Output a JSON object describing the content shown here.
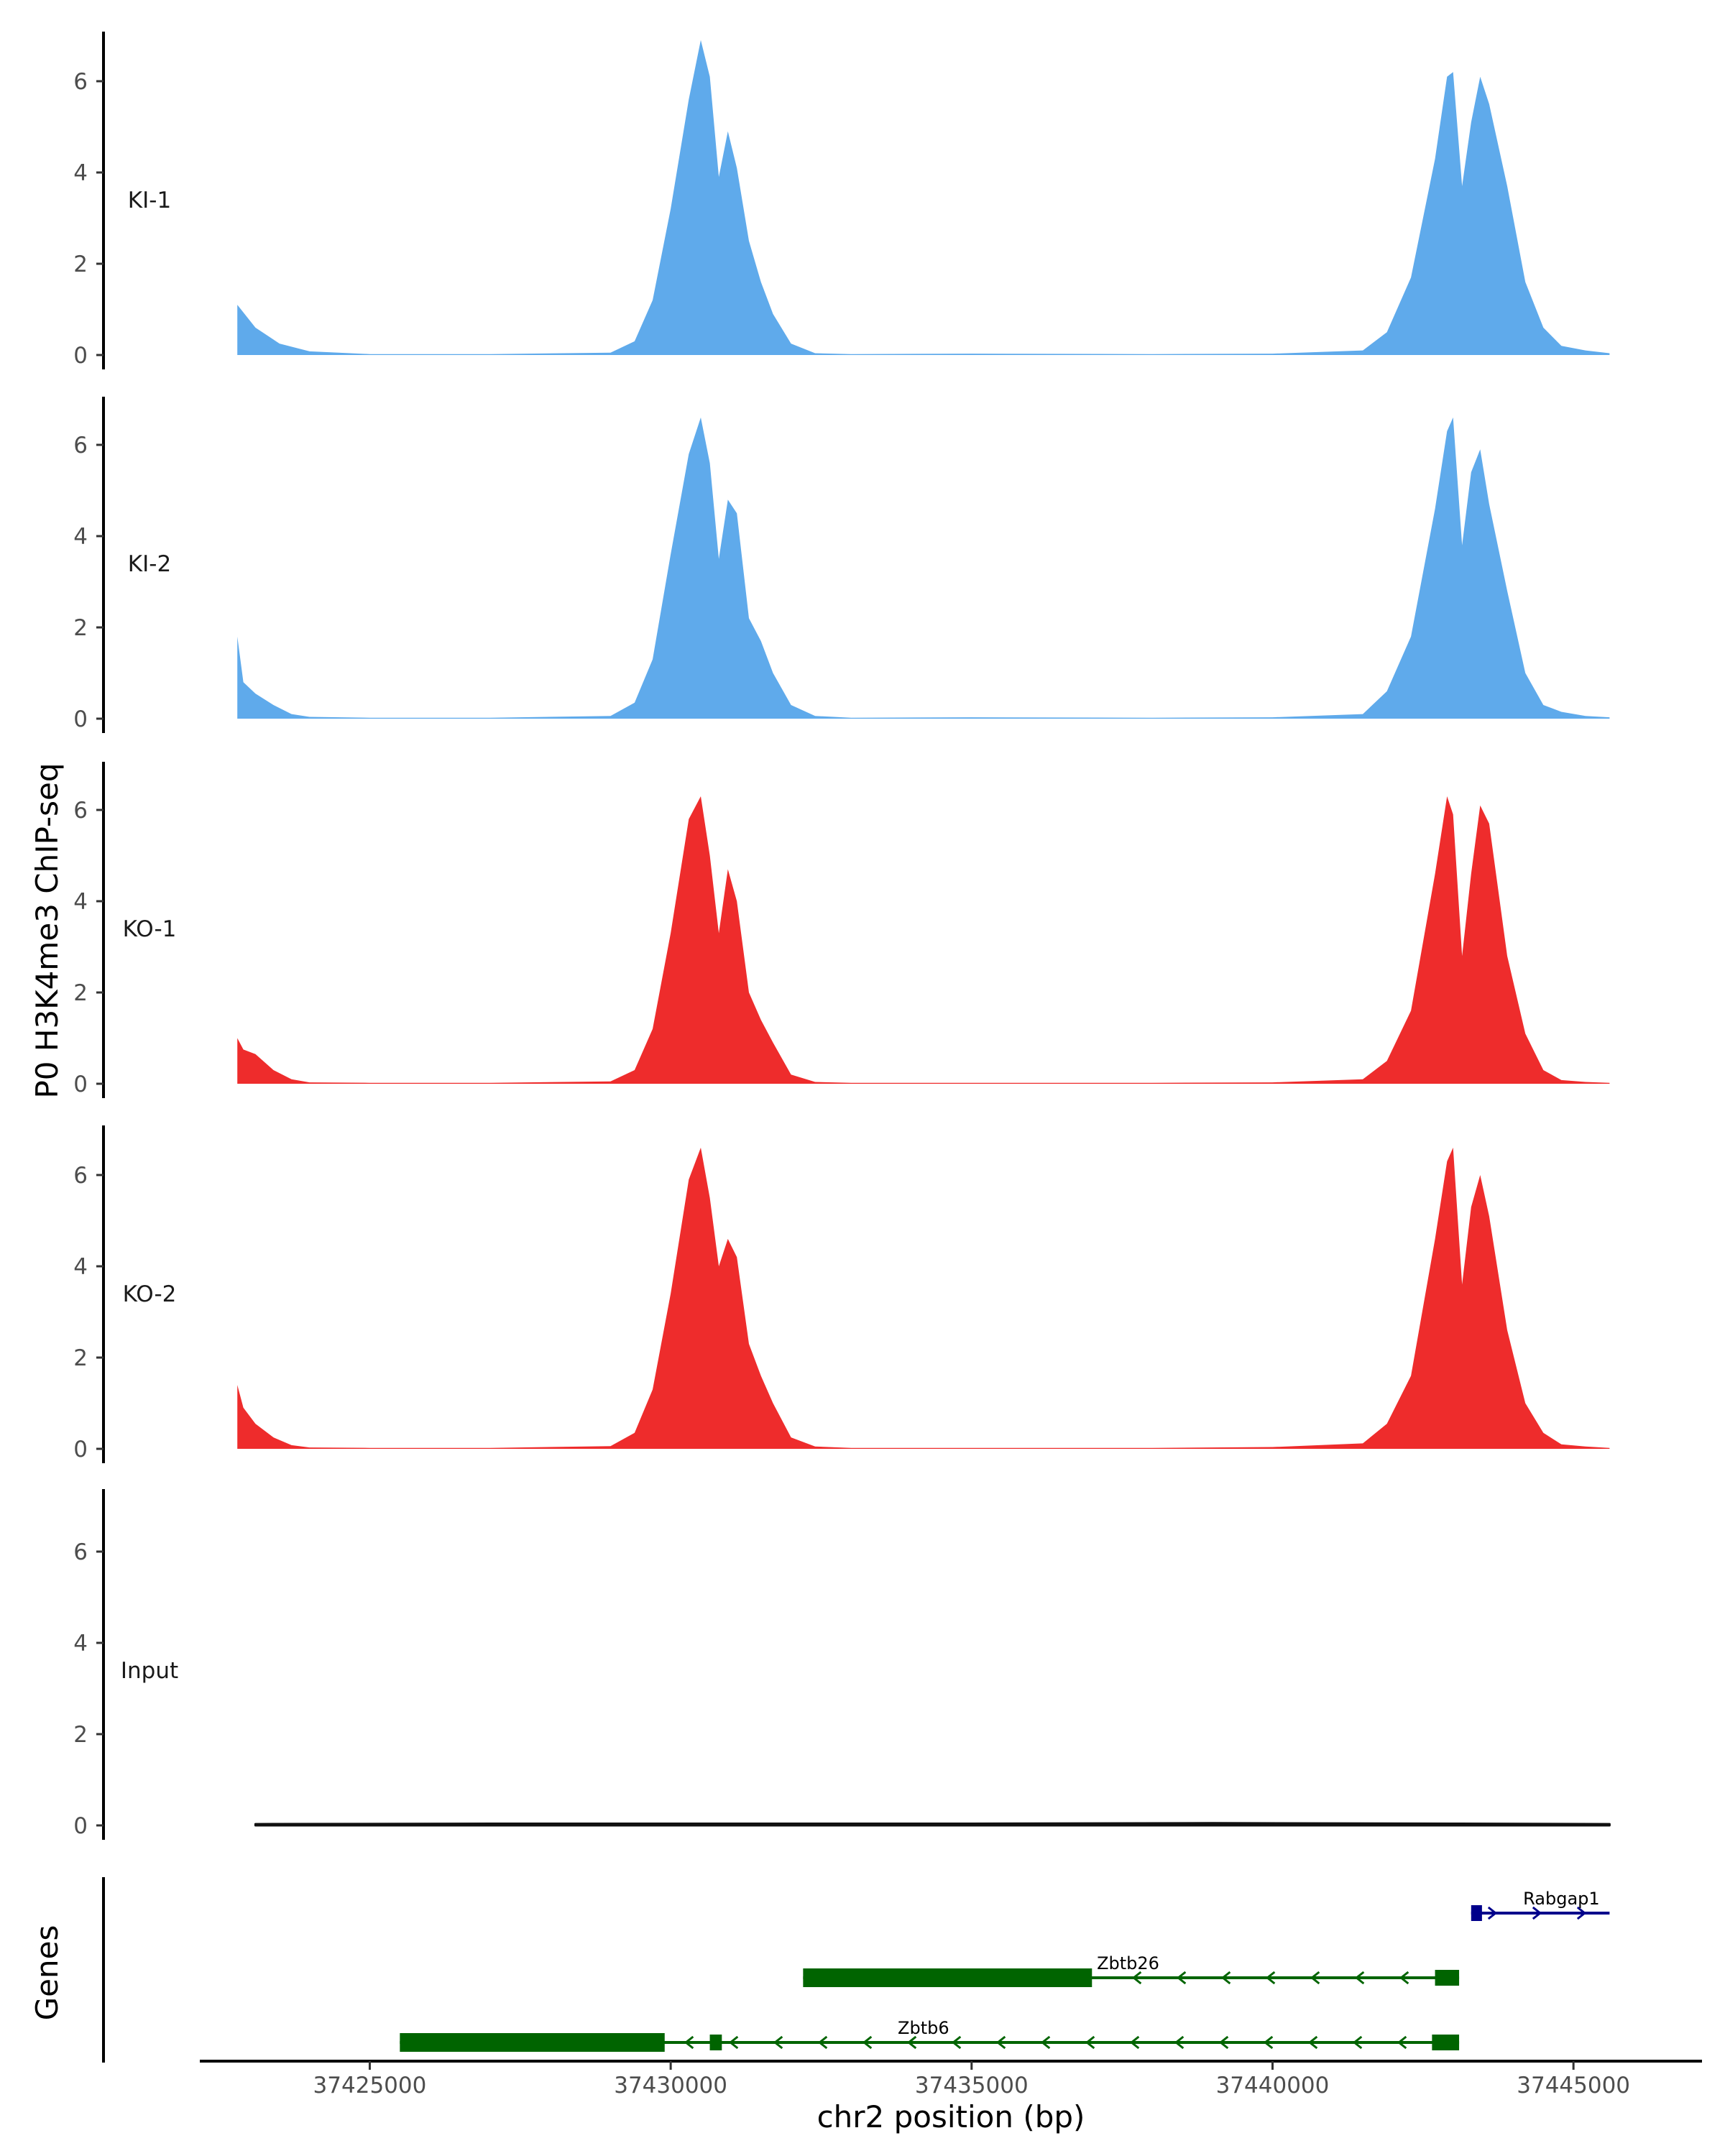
{
  "chart_data": {
    "type": "area",
    "ylabel": "P0 H3K4me3 ChIP-seq",
    "xlabel": "chr2 position (bp)",
    "gene_panel_label": "Genes",
    "ylim": [
      0,
      7.2
    ],
    "yticks": [
      0,
      2,
      4,
      6
    ],
    "xlim": [
      37422200,
      37447100
    ],
    "xticks": [
      37425000,
      37430000,
      37435000,
      37440000,
      37445000
    ],
    "x_tick_labels": [
      "37425000",
      "37430000",
      "37435000",
      "37440000",
      "37445000"
    ],
    "tracks": [
      {
        "name": "KI-1",
        "color": "#5FAAEB",
        "x": [
          37422800,
          37423100,
          37423500,
          37424000,
          37425000,
          37427000,
          37429000,
          37429400,
          37429700,
          37430000,
          37430300,
          37430500,
          37430650,
          37430800,
          37430950,
          37431100,
          37431300,
          37431500,
          37431700,
          37432000,
          37432400,
          37433000,
          37435000,
          37438000,
          37440000,
          37441500,
          37441900,
          37442300,
          37442700,
          37442900,
          37443000,
          37443150,
          37443300,
          37443450,
          37443600,
          37443900,
          37444200,
          37444500,
          37444800,
          37445200,
          37445600
        ],
        "values": [
          1.1,
          0.6,
          0.25,
          0.08,
          0.02,
          0.02,
          0.05,
          0.3,
          1.2,
          3.2,
          5.6,
          6.9,
          6.1,
          3.9,
          4.9,
          4.1,
          2.5,
          1.6,
          0.9,
          0.25,
          0.04,
          0.02,
          0.03,
          0.02,
          0.03,
          0.1,
          0.5,
          1.7,
          4.3,
          6.1,
          6.2,
          3.7,
          5.1,
          6.1,
          5.5,
          3.7,
          1.6,
          0.6,
          0.2,
          0.1,
          0.04
        ],
        "label_y": 3.4
      },
      {
        "name": "KI-2",
        "color": "#5FAAEB",
        "x": [
          37422800,
          37422900,
          37423100,
          37423400,
          37423700,
          37424000,
          37425000,
          37427000,
          37429000,
          37429400,
          37429700,
          37430000,
          37430300,
          37430500,
          37430650,
          37430800,
          37430950,
          37431100,
          37431300,
          37431500,
          37431700,
          37432000,
          37432400,
          37433000,
          37435000,
          37438000,
          37440000,
          37441500,
          37441900,
          37442300,
          37442700,
          37442900,
          37443000,
          37443150,
          37443300,
          37443450,
          37443600,
          37443900,
          37444200,
          37444500,
          37444800,
          37445200,
          37445600
        ],
        "values": [
          1.8,
          0.8,
          0.55,
          0.3,
          0.1,
          0.04,
          0.02,
          0.02,
          0.06,
          0.35,
          1.3,
          3.6,
          5.8,
          6.6,
          5.6,
          3.5,
          4.8,
          4.5,
          2.2,
          1.7,
          1.0,
          0.3,
          0.06,
          0.02,
          0.03,
          0.02,
          0.03,
          0.1,
          0.6,
          1.8,
          4.6,
          6.3,
          6.6,
          3.8,
          5.4,
          5.9,
          4.7,
          2.8,
          1.0,
          0.3,
          0.15,
          0.06,
          0.03
        ],
        "label_y": 3.4
      },
      {
        "name": "KO-1",
        "color": "#EE2C2C",
        "x": [
          37422800,
          37422900,
          37423100,
          37423400,
          37423700,
          37424000,
          37425000,
          37427000,
          37429000,
          37429400,
          37429700,
          37430000,
          37430300,
          37430500,
          37430650,
          37430800,
          37430950,
          37431100,
          37431300,
          37431500,
          37431700,
          37432000,
          37432400,
          37433000,
          37435000,
          37438000,
          37440000,
          37441500,
          37441900,
          37442300,
          37442700,
          37442900,
          37443000,
          37443150,
          37443300,
          37443450,
          37443600,
          37443900,
          37444200,
          37444500,
          37444800,
          37445200,
          37445600
        ],
        "values": [
          1.0,
          0.75,
          0.65,
          0.3,
          0.1,
          0.03,
          0.02,
          0.02,
          0.05,
          0.3,
          1.2,
          3.3,
          5.8,
          6.3,
          5.0,
          3.3,
          4.7,
          4.0,
          2.0,
          1.4,
          0.9,
          0.2,
          0.04,
          0.02,
          0.02,
          0.02,
          0.03,
          0.1,
          0.5,
          1.6,
          4.6,
          6.3,
          5.9,
          2.8,
          4.6,
          6.1,
          5.7,
          2.8,
          1.1,
          0.3,
          0.08,
          0.04,
          0.02
        ],
        "label_y": 3.4
      },
      {
        "name": "KO-2",
        "color": "#EE2C2C",
        "x": [
          37422800,
          37422900,
          37423100,
          37423400,
          37423700,
          37424000,
          37425000,
          37427000,
          37429000,
          37429400,
          37429700,
          37430000,
          37430300,
          37430500,
          37430650,
          37430800,
          37430950,
          37431100,
          37431300,
          37431500,
          37431700,
          37432000,
          37432400,
          37433000,
          37435000,
          37438000,
          37440000,
          37441500,
          37441900,
          37442300,
          37442700,
          37442900,
          37443000,
          37443150,
          37443300,
          37443450,
          37443600,
          37443900,
          37444200,
          37444500,
          37444800,
          37445200,
          37445600
        ],
        "values": [
          1.4,
          0.9,
          0.55,
          0.25,
          0.08,
          0.03,
          0.02,
          0.02,
          0.06,
          0.35,
          1.3,
          3.4,
          5.9,
          6.6,
          5.5,
          4.0,
          4.6,
          4.2,
          2.3,
          1.6,
          1.0,
          0.25,
          0.05,
          0.02,
          0.02,
          0.02,
          0.04,
          0.12,
          0.55,
          1.6,
          4.6,
          6.3,
          6.6,
          3.6,
          5.3,
          6.0,
          5.1,
          2.6,
          1.0,
          0.35,
          0.1,
          0.05,
          0.02
        ],
        "label_y": 3.4
      },
      {
        "name": "Input",
        "color": "#111111",
        "x": [
          37423100,
          37427000,
          37431000,
          37435000,
          37439000,
          37443000,
          37445600
        ],
        "values": [
          0.03,
          0.04,
          0.04,
          0.04,
          0.05,
          0.04,
          0.03
        ],
        "label_y": 3.4
      }
    ],
    "genes": [
      {
        "name": "Rabgap1",
        "strand": "+",
        "color": "#00008B",
        "start": 37443300,
        "end": 37445600,
        "thick_start": 37443300,
        "thick_end": 37443480,
        "exons": [
          [
            37443300,
            37443480
          ]
        ],
        "row": 0
      },
      {
        "name": "Zbtb26",
        "strand": "-",
        "color": "#006400",
        "start": 37432200,
        "end": 37443100,
        "thick_start": 37432200,
        "thick_end": 37437000,
        "exons": [
          [
            37432200,
            37437000
          ],
          [
            37442700,
            37443100
          ]
        ],
        "row": 1
      },
      {
        "name": "Zbtb6",
        "strand": "-",
        "color": "#006400",
        "start": 37425500,
        "end": 37443100,
        "thick_start": 37425500,
        "thick_end": 37429900,
        "exons": [
          [
            37425500,
            37429900
          ],
          [
            37430650,
            37430850
          ],
          [
            37442650,
            37443100
          ]
        ],
        "row": 2
      }
    ]
  }
}
